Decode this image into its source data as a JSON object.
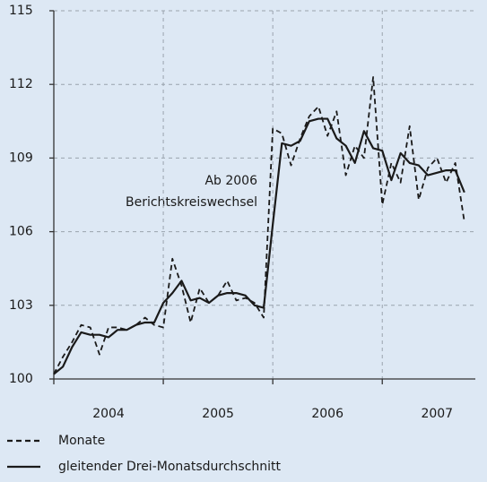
{
  "chart_data": {
    "type": "line",
    "x": [
      2004,
      2004.083,
      2004.167,
      2004.25,
      2004.333,
      2004.417,
      2004.5,
      2004.583,
      2004.667,
      2004.75,
      2004.833,
      2004.917,
      2005,
      2005.083,
      2005.167,
      2005.25,
      2005.333,
      2005.417,
      2005.5,
      2005.583,
      2005.667,
      2005.75,
      2005.833,
      2005.917,
      2006,
      2006.083,
      2006.167,
      2006.25,
      2006.333,
      2006.417,
      2006.5,
      2006.583,
      2006.667,
      2006.75,
      2006.833,
      2006.917,
      2007,
      2007.083,
      2007.167,
      2007.25,
      2007.333,
      2007.417,
      2007.5,
      2007.583,
      2007.667,
      2007.75
    ],
    "series": [
      {
        "name": "Monate",
        "color": "#1a1a1a",
        "dashed": true,
        "values": [
          100.2,
          100.9,
          101.5,
          102.2,
          102.1,
          101.0,
          102.1,
          102.1,
          102.0,
          102.2,
          102.5,
          102.2,
          102.1,
          104.9,
          103.8,
          102.3,
          103.7,
          103.1,
          103.4,
          104.0,
          103.2,
          103.3,
          103.1,
          102.5,
          110.2,
          110.0,
          108.7,
          109.8,
          110.7,
          111.1,
          109.9,
          110.9,
          108.3,
          109.5,
          109.0,
          112.3,
          107.1,
          108.8,
          108.0,
          110.3,
          107.3,
          108.6,
          109.0,
          108.0,
          108.8,
          106.4
        ]
      },
      {
        "name": "gleitender Drei-Monatsdurchschnitt",
        "color": "#1a1a1a",
        "dashed": false,
        "values": [
          100.2,
          100.5,
          101.3,
          101.9,
          101.8,
          101.8,
          101.7,
          102.0,
          102.0,
          102.2,
          102.3,
          102.3,
          103.1,
          103.5,
          104.0,
          103.2,
          103.3,
          103.1,
          103.4,
          103.5,
          103.5,
          103.4,
          103.0,
          102.9,
          106.3,
          109.6,
          109.5,
          109.7,
          110.5,
          110.6,
          110.6,
          109.8,
          109.5,
          108.8,
          110.1,
          109.4,
          109.3,
          108.1,
          109.2,
          108.8,
          108.7,
          108.3,
          108.4,
          108.5,
          108.5,
          107.6
        ]
      }
    ],
    "annotation": [
      "Ab 2006",
      "Berichtskreiswechsel"
    ],
    "xlim": [
      2004,
      2007.85
    ],
    "xticks": [
      {
        "value": 2004.5,
        "label": "2004"
      },
      {
        "value": 2005.5,
        "label": "2005"
      },
      {
        "value": 2006.5,
        "label": "2006"
      },
      {
        "value": 2007.5,
        "label": "2007"
      }
    ],
    "xgrid": [
      2004,
      2005,
      2006,
      2007
    ],
    "ylim": [
      100,
      115
    ],
    "yticks": [
      100,
      103,
      106,
      109,
      112,
      115
    ],
    "grid": true
  }
}
